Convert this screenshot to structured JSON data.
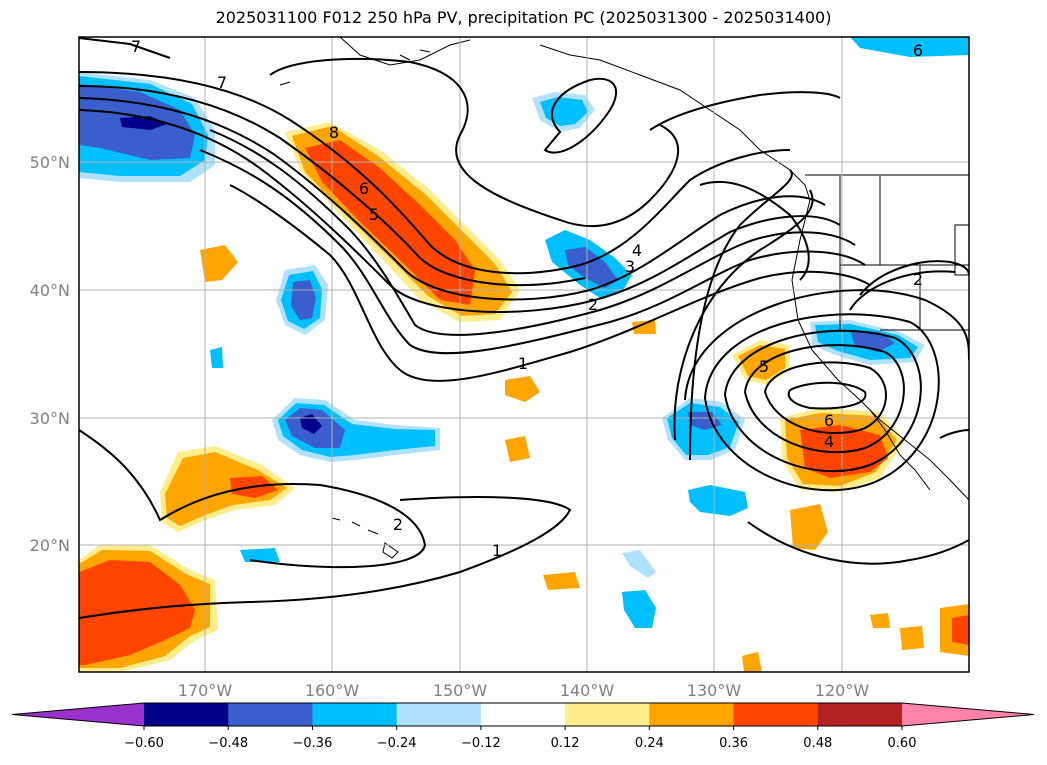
{
  "title": "2025031100 F012 250 hPa PV, precipitation PC (2025031300 - 2025031400)",
  "map": {
    "lat_labels": [
      "50°N",
      "40°N",
      "30°N",
      "20°N"
    ],
    "lon_labels": [
      "170°W",
      "160°W",
      "150°W",
      "140°W",
      "130°W",
      "120°W"
    ],
    "contour_labels": [
      "7",
      "7",
      "8",
      "6",
      "5",
      "4",
      "3",
      "2",
      "1",
      "2",
      "1",
      "5",
      "6",
      "4",
      "2",
      "6"
    ]
  },
  "colorbar": {
    "tick_labels": [
      "−0.60",
      "−0.48",
      "−0.36",
      "−0.24",
      "−0.12",
      "0.12",
      "0.24",
      "0.36",
      "0.48",
      "0.60"
    ],
    "colors": [
      "#9932cc",
      "#00008b",
      "#3a5fcd",
      "#00bfff",
      "#b0e2ff",
      "#ffffff",
      "#ffec8b",
      "#ffa500",
      "#ff4500",
      "#b22222",
      "#ff82ab"
    ]
  }
}
